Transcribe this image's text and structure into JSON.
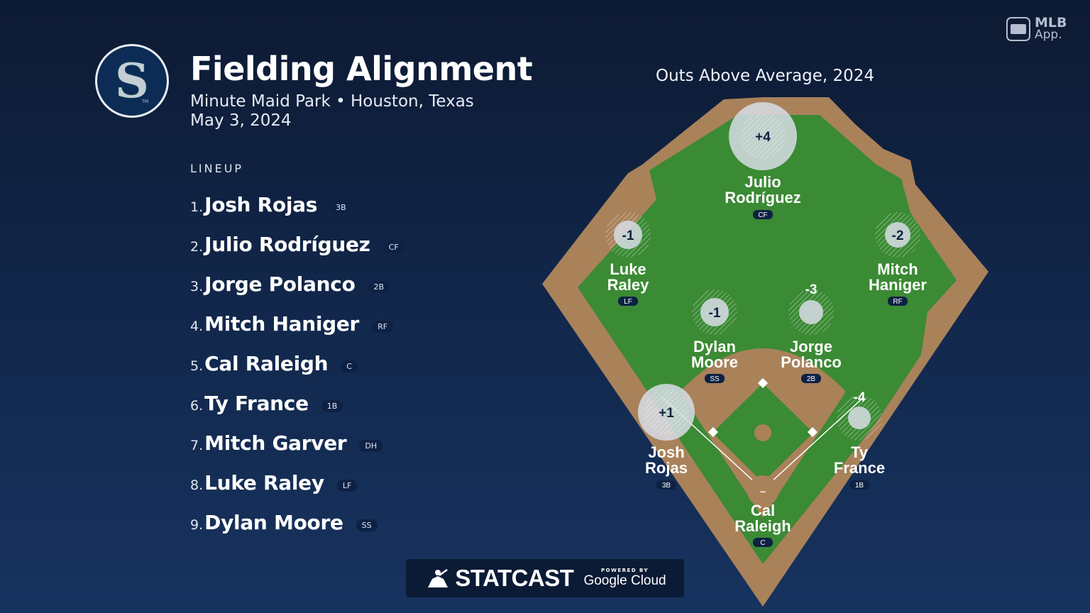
{
  "header": {
    "title": "Fielding Alignment",
    "venue": "Minute Maid Park • Houston, Texas",
    "date": "May 3, 2024",
    "team_logo_letter": "S",
    "team_logo_tm": "TM"
  },
  "brand": {
    "app_name": "MLB",
    "app_sub": "App."
  },
  "lineup": {
    "label": "LINEUP",
    "items": [
      {
        "num": "1.",
        "name": "Josh Rojas",
        "pos": "3B"
      },
      {
        "num": "2.",
        "name": "Julio Rodríguez",
        "pos": "CF"
      },
      {
        "num": "3.",
        "name": "Jorge Polanco",
        "pos": "2B"
      },
      {
        "num": "4.",
        "name": "Mitch Haniger",
        "pos": "RF"
      },
      {
        "num": "5.",
        "name": "Cal Raleigh",
        "pos": "C"
      },
      {
        "num": "6.",
        "name": "Ty France",
        "pos": "1B"
      },
      {
        "num": "7.",
        "name": "Mitch Garver",
        "pos": "DH"
      },
      {
        "num": "8.",
        "name": "Luke Raley",
        "pos": "LF"
      },
      {
        "num": "9.",
        "name": "Dylan Moore",
        "pos": "SS"
      }
    ]
  },
  "field": {
    "title": "Outs Above Average, 2024",
    "players": [
      {
        "key": "cf",
        "line1": "Julio",
        "line2": "Rodríguez",
        "pos": "CF",
        "oaa": "+4",
        "oaa_num": 4
      },
      {
        "key": "lf",
        "line1": "Luke",
        "line2": "Raley",
        "pos": "LF",
        "oaa": "-1",
        "oaa_num": -1
      },
      {
        "key": "rf",
        "line1": "Mitch",
        "line2": "Haniger",
        "pos": "RF",
        "oaa": "-2",
        "oaa_num": -2
      },
      {
        "key": "ss",
        "line1": "Dylan",
        "line2": "Moore",
        "pos": "SS",
        "oaa": "-1",
        "oaa_num": -1
      },
      {
        "key": "2b",
        "line1": "Jorge",
        "line2": "Polanco",
        "pos": "2B",
        "oaa": "-3",
        "oaa_num": -3
      },
      {
        "key": "3b",
        "line1": "Josh",
        "line2": "Rojas",
        "pos": "3B",
        "oaa": "+1",
        "oaa_num": 1
      },
      {
        "key": "1b",
        "line1": "Ty",
        "line2": "France",
        "pos": "1B",
        "oaa": "-4",
        "oaa_num": -4
      },
      {
        "key": "c",
        "line1": "Cal",
        "line2": "Raleigh",
        "pos": "C",
        "oaa": "–",
        "oaa_num": null
      }
    ]
  },
  "footer": {
    "statcast": "STATCAST",
    "powered_by": "POWERED BY",
    "google_cloud": "Google Cloud"
  },
  "colors": {
    "background": "#0d1a33",
    "grass": "#3b8a34",
    "dirt": "#a9825a",
    "text": "#ffffff"
  }
}
